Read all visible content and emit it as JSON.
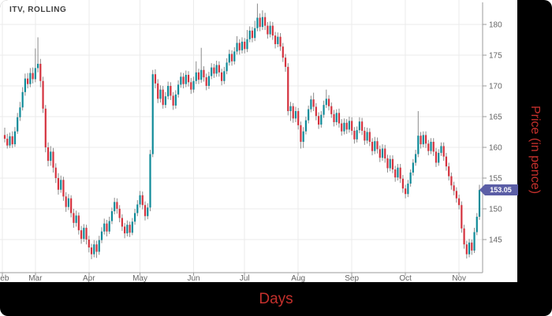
{
  "title": "ITV, ROLLING",
  "axes": {
    "x_label": "Days",
    "y_label": "Price (in pence)"
  },
  "colors": {
    "up": "#0f8b99",
    "down": "#d4323e",
    "wick": "#8b8b8b",
    "grid": "#ebebeb",
    "axis": "#9b9b9b",
    "tick_text": "#636363",
    "title_text": "#3f3f3f",
    "label_red": "#c5302c",
    "price_tag": "#5b5ea6",
    "frame": "#000000",
    "panel": "#ffffff"
  },
  "chart_data": {
    "type": "candlestick",
    "title": "ITV, ROLLING",
    "xlabel": "Days",
    "ylabel": "Price (in pence)",
    "ylim": [
      139.6,
      183.6
    ],
    "grid": true,
    "y_ticks": [
      180,
      175,
      170,
      165,
      160,
      155,
      150,
      145
    ],
    "months": [
      {
        "label": "Feb",
        "day": -1
      },
      {
        "label": "Mar",
        "day": 12
      },
      {
        "label": "Apr",
        "day": 33
      },
      {
        "label": "May",
        "day": 53
      },
      {
        "label": "Jun",
        "day": 74
      },
      {
        "label": "Jul",
        "day": 94
      },
      {
        "label": "Aug",
        "day": 115
      },
      {
        "label": "Sep",
        "day": 136
      },
      {
        "label": "Oct",
        "day": 157
      },
      {
        "label": "Nov",
        "day": 178
      }
    ],
    "last_price": 153.05,
    "last_price_label": "153.05",
    "candles": [
      [
        162.0,
        163.2,
        160.8,
        161.4
      ],
      [
        161.4,
        162.2,
        159.8,
        160.3
      ],
      [
        160.3,
        162.4,
        159.9,
        161.8
      ],
      [
        161.8,
        162.6,
        159.9,
        160.5
      ],
      [
        160.5,
        163.3,
        160.1,
        162.6
      ],
      [
        162.6,
        165.6,
        162.2,
        164.9
      ],
      [
        164.9,
        167.4,
        164.3,
        166.5
      ],
      [
        166.5,
        169.8,
        166.0,
        169.0
      ],
      [
        169.0,
        172.0,
        168.4,
        171.2
      ],
      [
        171.2,
        172.1,
        169.6,
        170.3
      ],
      [
        170.3,
        172.9,
        169.8,
        172.1
      ],
      [
        172.1,
        173.0,
        170.4,
        171.1
      ],
      [
        171.1,
        176.1,
        170.6,
        172.9
      ],
      [
        172.9,
        177.9,
        172.2,
        173.6
      ],
      [
        173.6,
        174.4,
        169.8,
        170.8
      ],
      [
        170.8,
        171.5,
        165.6,
        166.3
      ],
      [
        166.3,
        166.9,
        159.2,
        160.0
      ],
      [
        160.0,
        160.8,
        156.9,
        157.8
      ],
      [
        157.8,
        160.2,
        157.0,
        159.3
      ],
      [
        159.3,
        159.9,
        155.9,
        156.7
      ],
      [
        156.7,
        157.4,
        154.2,
        155.0
      ],
      [
        155.0,
        155.8,
        152.3,
        153.1
      ],
      [
        153.1,
        155.4,
        152.6,
        154.7
      ],
      [
        154.7,
        155.2,
        151.3,
        152.0
      ],
      [
        152.0,
        152.7,
        149.5,
        150.3
      ],
      [
        150.3,
        152.4,
        149.8,
        151.7
      ],
      [
        151.7,
        152.2,
        148.6,
        149.3
      ],
      [
        149.3,
        150.0,
        146.9,
        147.7
      ],
      [
        147.7,
        149.7,
        147.1,
        148.9
      ],
      [
        148.9,
        149.4,
        145.8,
        146.5
      ],
      [
        146.5,
        147.2,
        144.3,
        145.1
      ],
      [
        145.1,
        147.5,
        144.6,
        146.9
      ],
      [
        146.9,
        147.4,
        144.2,
        145.0
      ],
      [
        145.0,
        145.6,
        142.9,
        143.7
      ],
      [
        143.7,
        144.3,
        141.8,
        142.6
      ],
      [
        142.6,
        144.9,
        142.1,
        144.2
      ],
      [
        144.2,
        144.8,
        142.0,
        143.0
      ],
      [
        143.0,
        145.6,
        142.5,
        144.9
      ],
      [
        144.9,
        147.0,
        144.4,
        146.3
      ],
      [
        146.3,
        148.4,
        145.8,
        147.6
      ],
      [
        147.6,
        148.2,
        145.5,
        146.3
      ],
      [
        146.3,
        148.7,
        145.9,
        148.0
      ],
      [
        148.0,
        150.2,
        147.5,
        149.6
      ],
      [
        149.6,
        151.8,
        149.1,
        151.1
      ],
      [
        151.1,
        151.7,
        149.2,
        150.0
      ],
      [
        150.0,
        150.6,
        147.8,
        148.5
      ],
      [
        148.5,
        149.1,
        146.4,
        147.1
      ],
      [
        147.1,
        147.7,
        145.2,
        146.0
      ],
      [
        146.0,
        148.1,
        145.5,
        147.4
      ],
      [
        147.4,
        147.9,
        145.4,
        146.1
      ],
      [
        146.1,
        148.5,
        145.7,
        147.9
      ],
      [
        147.9,
        150.0,
        147.4,
        149.3
      ],
      [
        149.3,
        151.4,
        148.8,
        150.7
      ],
      [
        150.7,
        152.9,
        150.2,
        152.2
      ],
      [
        152.2,
        152.8,
        149.9,
        150.6
      ],
      [
        150.6,
        151.2,
        148.1,
        148.8
      ],
      [
        148.8,
        150.9,
        148.3,
        150.2
      ],
      [
        150.2,
        159.6,
        149.6,
        158.9
      ],
      [
        158.9,
        172.6,
        158.4,
        171.9
      ],
      [
        171.9,
        172.7,
        169.6,
        170.4
      ],
      [
        170.4,
        171.1,
        167.2,
        167.9
      ],
      [
        167.9,
        170.1,
        167.3,
        169.4
      ],
      [
        169.4,
        170.0,
        166.3,
        166.9
      ],
      [
        166.9,
        169.0,
        166.4,
        168.3
      ],
      [
        168.3,
        170.7,
        167.8,
        170.0
      ],
      [
        170.0,
        170.6,
        167.7,
        168.4
      ],
      [
        168.4,
        169.0,
        166.1,
        166.8
      ],
      [
        166.8,
        169.3,
        166.3,
        168.6
      ],
      [
        168.6,
        170.9,
        168.1,
        170.2
      ],
      [
        170.2,
        172.2,
        169.7,
        171.5
      ],
      [
        171.5,
        172.1,
        169.6,
        170.3
      ],
      [
        170.3,
        172.5,
        169.8,
        171.8
      ],
      [
        171.8,
        172.4,
        169.9,
        170.6
      ],
      [
        170.6,
        171.3,
        168.7,
        169.4
      ],
      [
        169.4,
        171.5,
        168.9,
        170.8
      ],
      [
        170.8,
        174.0,
        170.3,
        172.2
      ],
      [
        172.2,
        172.8,
        170.3,
        171.0
      ],
      [
        171.0,
        176.2,
        170.5,
        172.6
      ],
      [
        172.6,
        173.2,
        170.7,
        171.4
      ],
      [
        171.4,
        172.0,
        169.3,
        170.0
      ],
      [
        170.0,
        172.3,
        169.5,
        171.6
      ],
      [
        171.6,
        173.7,
        171.1,
        173.0
      ],
      [
        173.0,
        173.6,
        171.3,
        172.0
      ],
      [
        172.0,
        174.1,
        171.5,
        173.4
      ],
      [
        173.4,
        174.0,
        171.5,
        172.2
      ],
      [
        172.2,
        172.8,
        170.1,
        170.8
      ],
      [
        170.8,
        173.1,
        170.3,
        172.4
      ],
      [
        172.4,
        174.5,
        171.9,
        173.8
      ],
      [
        173.8,
        175.9,
        173.3,
        175.2
      ],
      [
        175.2,
        175.8,
        173.3,
        174.0
      ],
      [
        174.0,
        176.3,
        173.5,
        175.6
      ],
      [
        175.6,
        178.1,
        175.1,
        177.0
      ],
      [
        177.0,
        177.6,
        175.1,
        175.8
      ],
      [
        175.8,
        177.9,
        175.3,
        177.2
      ],
      [
        177.2,
        177.8,
        175.3,
        176.0
      ],
      [
        176.0,
        179.1,
        175.5,
        177.6
      ],
      [
        177.6,
        179.7,
        177.1,
        179.0
      ],
      [
        179.0,
        179.6,
        177.1,
        177.8
      ],
      [
        177.8,
        180.6,
        177.3,
        179.4
      ],
      [
        179.4,
        183.4,
        178.9,
        181.1
      ],
      [
        181.1,
        181.8,
        178.9,
        179.6
      ],
      [
        179.6,
        182.3,
        179.1,
        181.2
      ],
      [
        181.2,
        181.9,
        179.1,
        179.8
      ],
      [
        179.8,
        180.4,
        177.7,
        178.4
      ],
      [
        178.4,
        180.5,
        177.9,
        179.8
      ],
      [
        179.8,
        180.4,
        177.5,
        178.2
      ],
      [
        178.2,
        178.8,
        176.1,
        176.8
      ],
      [
        176.8,
        178.7,
        176.3,
        178.0
      ],
      [
        178.0,
        178.6,
        175.7,
        176.4
      ],
      [
        176.4,
        177.0,
        173.9,
        174.6
      ],
      [
        174.6,
        175.2,
        172.3,
        173.1
      ],
      [
        173.1,
        173.7,
        165.2,
        165.9
      ],
      [
        165.9,
        167.4,
        164.3,
        166.7
      ],
      [
        166.7,
        167.2,
        164.0,
        164.7
      ],
      [
        164.7,
        166.6,
        164.1,
        165.9
      ],
      [
        165.9,
        166.4,
        162.9,
        163.6
      ],
      [
        163.6,
        164.2,
        159.8,
        160.9
      ],
      [
        160.9,
        163.3,
        159.9,
        162.6
      ],
      [
        162.6,
        165.0,
        162.1,
        164.4
      ],
      [
        164.4,
        166.8,
        163.9,
        166.2
      ],
      [
        166.2,
        168.4,
        165.7,
        167.8
      ],
      [
        167.8,
        168.9,
        165.9,
        166.6
      ],
      [
        166.6,
        167.2,
        164.4,
        165.1
      ],
      [
        165.1,
        165.7,
        163.0,
        163.7
      ],
      [
        163.7,
        165.9,
        163.2,
        165.3
      ],
      [
        165.3,
        167.6,
        164.8,
        166.9
      ],
      [
        166.9,
        169.4,
        166.4,
        167.9
      ],
      [
        167.9,
        168.5,
        166.0,
        166.7
      ],
      [
        166.7,
        167.3,
        164.8,
        165.4
      ],
      [
        165.4,
        166.1,
        163.4,
        164.1
      ],
      [
        164.1,
        166.2,
        163.6,
        165.6
      ],
      [
        165.6,
        166.3,
        163.2,
        163.9
      ],
      [
        163.9,
        164.6,
        161.9,
        162.6
      ],
      [
        162.6,
        164.7,
        162.1,
        164.0
      ],
      [
        164.0,
        164.6,
        162.2,
        162.9
      ],
      [
        162.9,
        165.0,
        162.4,
        164.3
      ],
      [
        164.3,
        164.9,
        162.0,
        162.7
      ],
      [
        162.7,
        163.3,
        160.6,
        161.3
      ],
      [
        161.3,
        163.4,
        160.8,
        162.8
      ],
      [
        162.8,
        164.9,
        162.3,
        164.2
      ],
      [
        164.2,
        164.8,
        162.0,
        162.7
      ],
      [
        162.7,
        163.3,
        160.4,
        161.1
      ],
      [
        161.1,
        163.2,
        160.6,
        162.5
      ],
      [
        162.5,
        163.1,
        160.2,
        160.9
      ],
      [
        160.9,
        161.5,
        158.7,
        159.4
      ],
      [
        159.4,
        161.7,
        158.9,
        161.0
      ],
      [
        161.0,
        161.6,
        159.0,
        159.7
      ],
      [
        159.7,
        160.3,
        157.6,
        158.3
      ],
      [
        158.3,
        160.5,
        157.8,
        159.8
      ],
      [
        159.8,
        160.4,
        157.5,
        158.2
      ],
      [
        158.2,
        158.8,
        155.9,
        156.6
      ],
      [
        156.6,
        158.7,
        156.1,
        158.1
      ],
      [
        158.1,
        158.7,
        155.8,
        156.4
      ],
      [
        156.4,
        157.0,
        154.4,
        155.1
      ],
      [
        155.1,
        157.3,
        154.6,
        156.7
      ],
      [
        156.7,
        157.3,
        154.2,
        154.9
      ],
      [
        154.9,
        155.5,
        152.6,
        153.3
      ],
      [
        153.3,
        153.9,
        151.7,
        152.4
      ],
      [
        152.4,
        154.7,
        151.9,
        154.1
      ],
      [
        154.1,
        156.4,
        153.6,
        155.9
      ],
      [
        155.9,
        158.1,
        155.4,
        157.5
      ],
      [
        157.5,
        159.6,
        157.0,
        158.9
      ],
      [
        158.9,
        165.9,
        158.4,
        161.9
      ],
      [
        161.9,
        162.5,
        159.8,
        160.5
      ],
      [
        160.5,
        162.6,
        160.0,
        162.0
      ],
      [
        162.0,
        162.6,
        159.9,
        160.6
      ],
      [
        160.6,
        161.2,
        158.7,
        159.4
      ],
      [
        159.4,
        161.5,
        158.9,
        160.9
      ],
      [
        160.9,
        161.5,
        158.6,
        159.3
      ],
      [
        159.3,
        159.9,
        156.8,
        157.5
      ],
      [
        157.5,
        159.7,
        157.0,
        159.1
      ],
      [
        159.1,
        160.8,
        158.6,
        160.2
      ],
      [
        160.2,
        160.8,
        157.8,
        158.5
      ],
      [
        158.5,
        159.1,
        156.2,
        156.9
      ],
      [
        156.9,
        157.5,
        154.6,
        155.3
      ],
      [
        155.3,
        155.9,
        153.1,
        153.8
      ],
      [
        153.8,
        154.4,
        152.2,
        152.9
      ],
      [
        152.9,
        153.5,
        151.0,
        151.7
      ],
      [
        151.7,
        152.3,
        149.9,
        150.6
      ],
      [
        150.6,
        151.2,
        146.1,
        146.8
      ],
      [
        146.8,
        147.4,
        143.5,
        144.2
      ],
      [
        144.2,
        144.8,
        141.9,
        142.6
      ],
      [
        142.6,
        145.1,
        142.1,
        144.5
      ],
      [
        144.5,
        145.0,
        142.5,
        143.2
      ],
      [
        143.2,
        146.9,
        142.8,
        146.2
      ],
      [
        146.2,
        149.3,
        145.7,
        148.7
      ],
      [
        148.7,
        153.9,
        148.2,
        153.05
      ]
    ]
  }
}
